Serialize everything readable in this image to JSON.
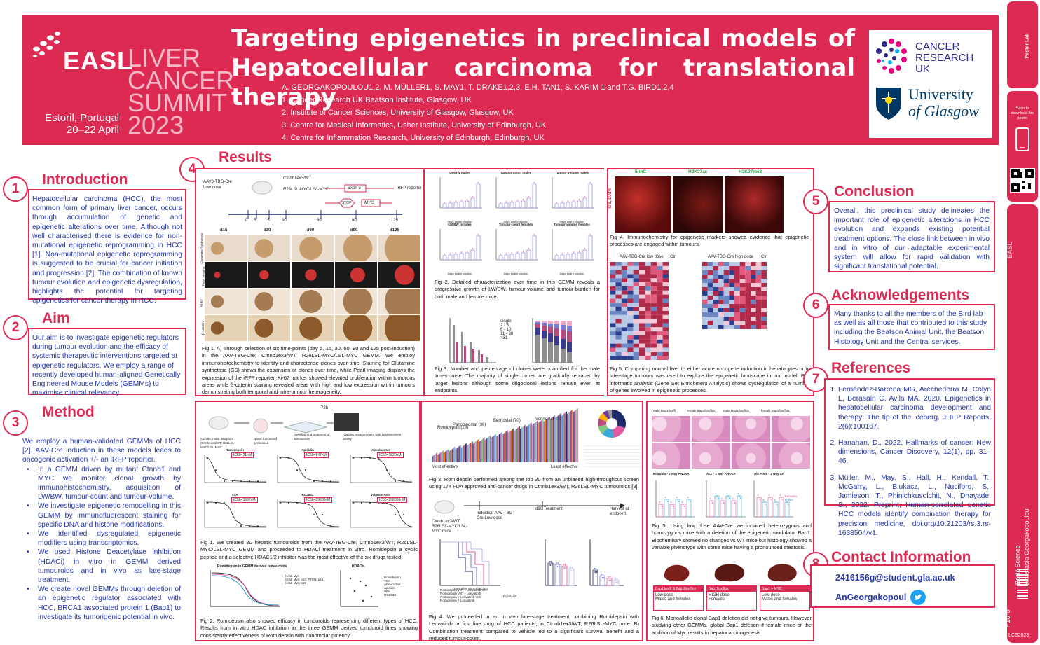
{
  "title": "Targeting epigenetics in preclinical models of Hepatocellular carcinoma for translational therapy",
  "event": {
    "brand": "EASL",
    "lines": [
      "LIVER",
      "CANCER",
      "SUMMIT",
      "2023"
    ],
    "place": "Estoril, Portugal",
    "dates": "20–22 April"
  },
  "authors": "A. GEORGAKOPOULOU1,2, M. MÜLLER1, S. MAY1, T. DRAKE1,2,3, E.H. TAN1, S. KARIM 1 and T.G. BIRD1,2,4",
  "affiliations": [
    "1. Cancer Research UK Beatson Institute, Glasgow, UK",
    "2. Institute of Cancer Sciences, University of Glasgow, Glasgow, UK",
    "3. Centre for Medical Informatics, Usher Institute, University of Edinburgh, UK",
    "4. Centre for Inflammation Research, University of Edinburgh, Edinburgh, UK"
  ],
  "logos": {
    "cruk": [
      "CANCER",
      "RESEARCH",
      "UK"
    ],
    "glasgow": [
      "University",
      "of Glasgow"
    ]
  },
  "sidebar": {
    "scan": "Scan to download the poster",
    "session": "Basic Science",
    "author": "Anastasia Georgakopoulou",
    "code": "P10-5",
    "id": "LCS2023"
  },
  "sections": {
    "introduction": {
      "num": "1",
      "title": "Introduction",
      "text": "Hepatocellular carcinoma (HCC), the most common form of primary liver cancer, occurs through accumulation of genetic and epigenetic alterations over time. Although not well characterised there is evidence for non-mutational epigenetic reprogramming in HCC [1]. Non-mutational epigenetic reprogramming is suggested to be crucial for cancer initiation and progression [2]. The combination of known tumour evolution and epigenetic dysregulation, highlights the potential for targeting epigenetics for cancer therapy in HCC."
    },
    "aim": {
      "num": "2",
      "title": "Aim",
      "text": "Our aim is to investigate epigenetic regulators during tumour evolution and the efficacy of systemic therapeutic interventions targeted at epigenetic regulators. We employ a range of recently developed human-aligned Genetically Engineered Mouse Models (GEMMs) to maximise clinical relevancy."
    },
    "method": {
      "num": "3",
      "title": "Method",
      "intro": "We employ a human-validated GEMMs of HCC [2]. AAV-Cre induction in these models leads to oncogenic activation +/- an iRFP reporter.",
      "bullets": [
        "In a GEMM driven by mutant Ctnnb1 and MYC we monitor clonal growth by immunohistochemistry, acquisition of LW/BW, tumour-count and tumour-volume.",
        "We investigate epigenetic remodelling in this GEMM by immunofluorescent staining for specific DNA and histone modifications.",
        "We identified dysregulated epigenetic modifiers using transcriptomics.",
        "We used Histone Deacetylase inhibition (HDACi) in vitro in GEMM derived tumouroids and in vivo as late-stage treatment.",
        "We create novel GEMMs through deletion of an epigenetic regulator associated with HCC, BRCA1 associated protein 1 (Bap1) to investigate its tumorigenic potential in vivo."
      ]
    },
    "results": {
      "num": "4",
      "title": "Results"
    },
    "conclusion": {
      "num": "5",
      "title": "Conclusion",
      "text": "Overall, this preclinical study delineates the important role of epigenetic alterations in HCC evolution and expands existing potential treatment options. The close link between in vivo and in vitro of our adaptable experimental system will allow for rapid validation with significant translational potential."
    },
    "acknowledgements": {
      "num": "6",
      "title": "Acknowledgements",
      "text": "Many thanks to all the members of the Bird lab as well as all those that contributed to this study including the Beatson Animal Unit, the Beatson Histology Unit and the Central services."
    },
    "references": {
      "num": "7",
      "title": "References",
      "items": [
        "Fernández-Barrena MG, Arechederra M, Colyn L, Berasain C, Avila MA. 2020. Epigenetics in hepatocellular carcinoma development and therapy: The tip of the iceberg. JHEP Reports, 2(6):100167.",
        "Hanahan, D., 2022. Hallmarks of cancer: New dimensions, Cancer Discovery, 12(1), pp. 31–46.",
        "Müller, M., May, S., Hall, H., Kendall, T., McGarry, L., Blukacz, L., Nuciforo, S., Jamieson, T., Phinichkusolchit, N., Dhayade, S., 2022. Preprint, Human-correlated genetic HCC models identify combination therapy for precision medicine, doi.org/10.21203/rs.3.rs-1638504/v1."
      ]
    },
    "contact": {
      "num": "8",
      "title": "Contact Information",
      "email": "2416156g@student.gla.ac.uk",
      "twitter": "AnGeorgakopoul"
    }
  },
  "figures": {
    "top_fig1": {
      "model": "AAV8-TBG-Cre",
      "dose": "Low dose",
      "gene1": "Ctnnb1ex3/WT",
      "gene2": "R26LSL-MYC/LSL-MYC",
      "exon": "Exon 3",
      "stop": "STOP",
      "myc": "MYC",
      "reporter": "iRFP reporter",
      "timepoints": [
        "0",
        "5",
        "15",
        "30",
        "60",
        "90",
        "125"
      ],
      "columns": [
        "d15",
        "d30",
        "d60",
        "d90",
        "d125"
      ],
      "rows": [
        "Glutamine Synthetase",
        "Pearl Imaging",
        "Ki-67",
        "β-catenin"
      ],
      "caption": "Fig 1. A) Through selection of six time-points (day 5, 15, 30, 60, 90 and 125 post-induction) in the AAV-TBG-Cre; Ctnnb1ex3/WT; R26LSL-MYC/LSL-MYC GEMM. We employ immunohistochemistry to identify and characterise clones over time. Staining for Glutamine synthetase (GS) shows the expansion of clones over time, while Pearl imaging displays the expression of the iRFP reporter. Ki-67 marker showed elevated proliferation within tumorous areas while β-catenin staining revealed areas with high and low expression within tumours demonstrating both temporal and intra-tumour heterogeneity."
    },
    "top_fig2": {
      "titles": [
        "LW/BW males",
        "Tumour-count males",
        "Tumour-volume males",
        "LW/BW females",
        "Tumour-count females",
        "Tumour-volume females"
      ],
      "xlabel": "Days post induction",
      "caption": "Fig 2. Detailed characterization over time in this GEMM reveals a progressive growth of LW/BW, tumour-volume and tumour-burden for both male and female mice."
    },
    "top_fig3": {
      "legend": [
        "single",
        "2 - 5",
        "6 - 10",
        "11 - 30",
        ">31"
      ],
      "caption": "Fig 3. Number and percentage of clones were quantified for the male time-course. The majority of single clones are gradually replaced by larger lesions although some oligoclonal lesions remain even at endpoints."
    },
    "top_fig4": {
      "stains": [
        "5-mC",
        "H3K27ac",
        "H3K27me3"
      ],
      "side": "GS, DAPI",
      "caption": "Fig 4. Immunochemistry for epigenetic markers showed evidence that epigenetic processes are engaged within tumours."
    },
    "top_fig5": {
      "left_groups": [
        "AAV-TBG-Cre low dose",
        "Ctrl"
      ],
      "right_groups": [
        "AAV-TBG-Cre high dose",
        "Ctrl"
      ],
      "caption": "Fig 5. Comparing normal liver to either acute oncogene induction in hepatocytes or to late-stage tumours was used to explore the epigenetic landscape in our model. Bio-informatic analysis (Gene Set Enrichment Analysis) shows dysregulation of a number of genes involved in epigenetic processes."
    },
    "bot_fig1": {
      "setup": [
        "C57Bl6, male, endpoint Ctnnb1ex3/WT; R26LSL-MYC/LSL-MYC",
        "Naïve tumouroid generation",
        "Seeding and treatment of tumouroids",
        "Viability measurement with luminescence assay"
      ],
      "time": "72h",
      "drugs": [
        "Romidepsin",
        "Apicidin",
        "Abexinostat",
        "TSA",
        "RG2833",
        "Valproic Acid"
      ],
      "ic50": [
        "IC50=21nM",
        "IC50=847nM",
        "IC50=1820nM",
        "IC50=3597nM",
        "IC50=29600nM",
        "IC50=288000nM"
      ],
      "ylabel": "Viability(%)",
      "xlabel": "log(M)",
      "caption": "Fig 1. We created 3D hepatic tumouroids from the AAV-TBG-Cre; Ctnnb1ex3/WT; R26LSL-MYC/LSL-MYC GEMM and proceeded to HDACi treatment in vitro. Romidepsin a cyclic peptide and a selective HDAC1/2 inhibitor was the most effective of the six drugs tested."
    },
    "bot_fig2": {
      "title_left": "Romidepsin in GEMM derived tumouroids",
      "title_right": "HDACis",
      "legend": [
        "β-cat; Myc",
        "β-cat; Myc; p53; PTEN; p16",
        "β-cat; Myc; p53"
      ],
      "drugs": [
        "Romidepsin",
        "TSA",
        "Abexinostat",
        "Apicidin",
        "VPA",
        "RG2833"
      ],
      "caption": "Fig 2. Romidepsin also showed efficacy in tumouroids representing different types of HCC. Results from in vitro HDAC inhibition in the three GEMM derived tumouroid lines showing consistently effectiveness of Romidepsin with nanomolar potency."
    },
    "bot_fig3": {
      "labels": [
        "Romidepsin (28)",
        "Panobinostat (36)",
        "Belinostat (70)",
        "Vorinostat (92)"
      ],
      "ends": [
        "Most effective",
        "Least effective"
      ],
      "caption": "Fig 3. Romidepsin performed among the top 30 from an unbiased high-throughput screen using 174 FDA approved anti-cancer drugs in Ctnnb1ex3/WT; R26LSL-MYC tumouroids [3]."
    },
    "bot_fig4": {
      "timeline": [
        "Induction AAV-TBG-Cre Low dose",
        "d90 Treatment",
        "Harvest at endpoint"
      ],
      "mouse": "Ctnnb1ex3/WT; R26LSL-MYC/LSL-MYC mice",
      "legend": [
        "Romidepsin Veh + Lenvatinib Veh",
        "Romidepsin Veh + Lenvatinib",
        "Romidepsin + Lenvatinib Veh",
        "Romidepsin + Lenvatinib"
      ],
      "pvalue": "p=0.0128",
      "xlabel": "Days after Virus Injection",
      "ylabels": [
        "Survival (%)",
        "Liver/body ratio (%)",
        "Tumour count"
      ],
      "caption": "Fig 4. We proceeded in an in vivo late-stage treatment combining Romidepsin with Lenvatinib, a first line drug of HCC patients, in Ctnnb1ex3/WT; R26LSL-MYC mice. B) Combination treatment compared to vehicle led to a significant survival benefit and a reduced tumour-count."
    },
    "bot_fig5": {
      "cols": [
        "male Bap1flox/fl",
        "female Bap1flox/flox",
        "male Bap1flox/flox",
        "female Bap1flox/flox"
      ],
      "charts": [
        "Bilirubin - 2 way ANOVA",
        "ALT - 2 way ANOVA",
        "Alk Phos - 2 way AN"
      ],
      "legend": [
        "Females",
        "Males"
      ],
      "caption": "Fig 5. Using low dose AAV-Cre we induced heterozygous and homozygous mice with a deletion of the epigenetic modulator Bap1. Biochemistry showed no changes vs WT mice but histology showed a variable phenotype with some mice having a pronounced steatosis."
    },
    "bot_fig6": {
      "boxes": [
        [
          "Bap1flox/fl & Bap1flox/flox",
          "Low dose",
          "Males and females"
        ],
        [
          "Bap1flox/flox",
          "HIGH dose",
          "Females"
        ],
        [
          "Bap1 + MYC",
          "Low dose",
          "Males and females"
        ]
      ],
      "caption": "Fig 6. Monoallelic clonal Bap1 deletion did not give tumours. However studying other GEMMs, global Bap1 deletion if female mice or the addition of Myc results in hepatocarcinogenesis."
    }
  },
  "colors": {
    "accent": "#dd2a53",
    "text": "#2436a6",
    "navy": "#1d2b6b"
  }
}
